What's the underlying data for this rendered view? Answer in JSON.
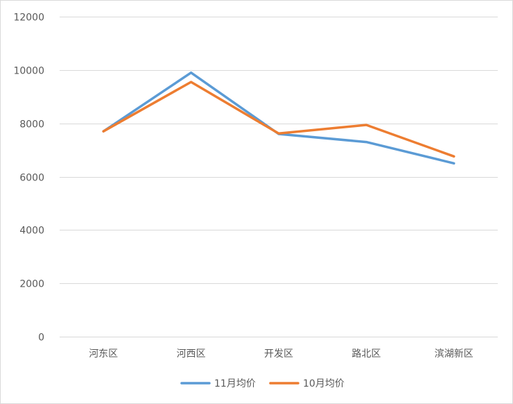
{
  "chart_data": {
    "type": "line",
    "title": "",
    "xlabel": "",
    "ylabel": "",
    "categories": [
      "河东区",
      "河西区",
      "开发区",
      "路北区",
      "滨湖新区"
    ],
    "ylim": [
      0,
      12000
    ],
    "yticks": [
      0,
      2000,
      4000,
      6000,
      8000,
      10000,
      12000
    ],
    "grid": true,
    "legend_position": "bottom",
    "series": [
      {
        "name": "11月均价",
        "color": "#5b9bd5",
        "values": [
          7700,
          9900,
          7600,
          7300,
          6500
        ]
      },
      {
        "name": "10月均价",
        "color": "#ed7d31",
        "values": [
          7700,
          9550,
          7620,
          7940,
          6760
        ]
      }
    ]
  }
}
